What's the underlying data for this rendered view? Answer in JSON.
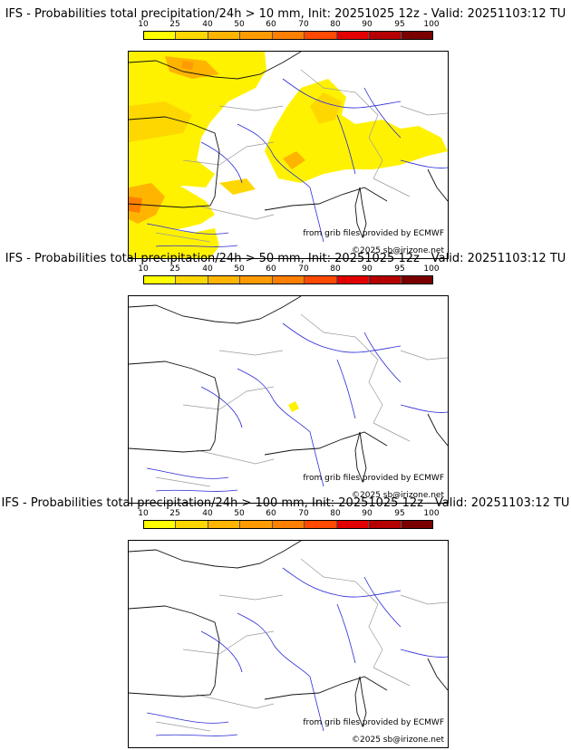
{
  "colorbar": {
    "ticks": [
      "10",
      "25",
      "40",
      "50",
      "60",
      "70",
      "80",
      "90",
      "95",
      "100"
    ],
    "colors": [
      "#ffff00",
      "#ffd700",
      "#ffb400",
      "#ff9b00",
      "#ff7f00",
      "#ff4a00",
      "#e20000",
      "#b40000",
      "#7a0000"
    ]
  },
  "credits": {
    "source": "from grib files provided by ECMWF",
    "copyright": "©2025 sb@irizone.net"
  },
  "panels": [
    {
      "title": "IFS - Probabilities total precipitation/24h > 10 mm, Init: 20251025 12z - Valid: 20251103:12 TU"
    },
    {
      "title": "IFS - Probabilities total precipitation/24h > 50 mm, Init: 20251025 12z - Valid: 20251103:12 TU"
    },
    {
      "title": "IFS - Probabilities total precipitation/24h > 100 mm, Init: 20251025 12z - Valid: 20251103:12 TU"
    }
  ],
  "style": {
    "coast": "#111111",
    "rivers": "#2a2ad8",
    "borders": "#9a9a9a"
  }
}
